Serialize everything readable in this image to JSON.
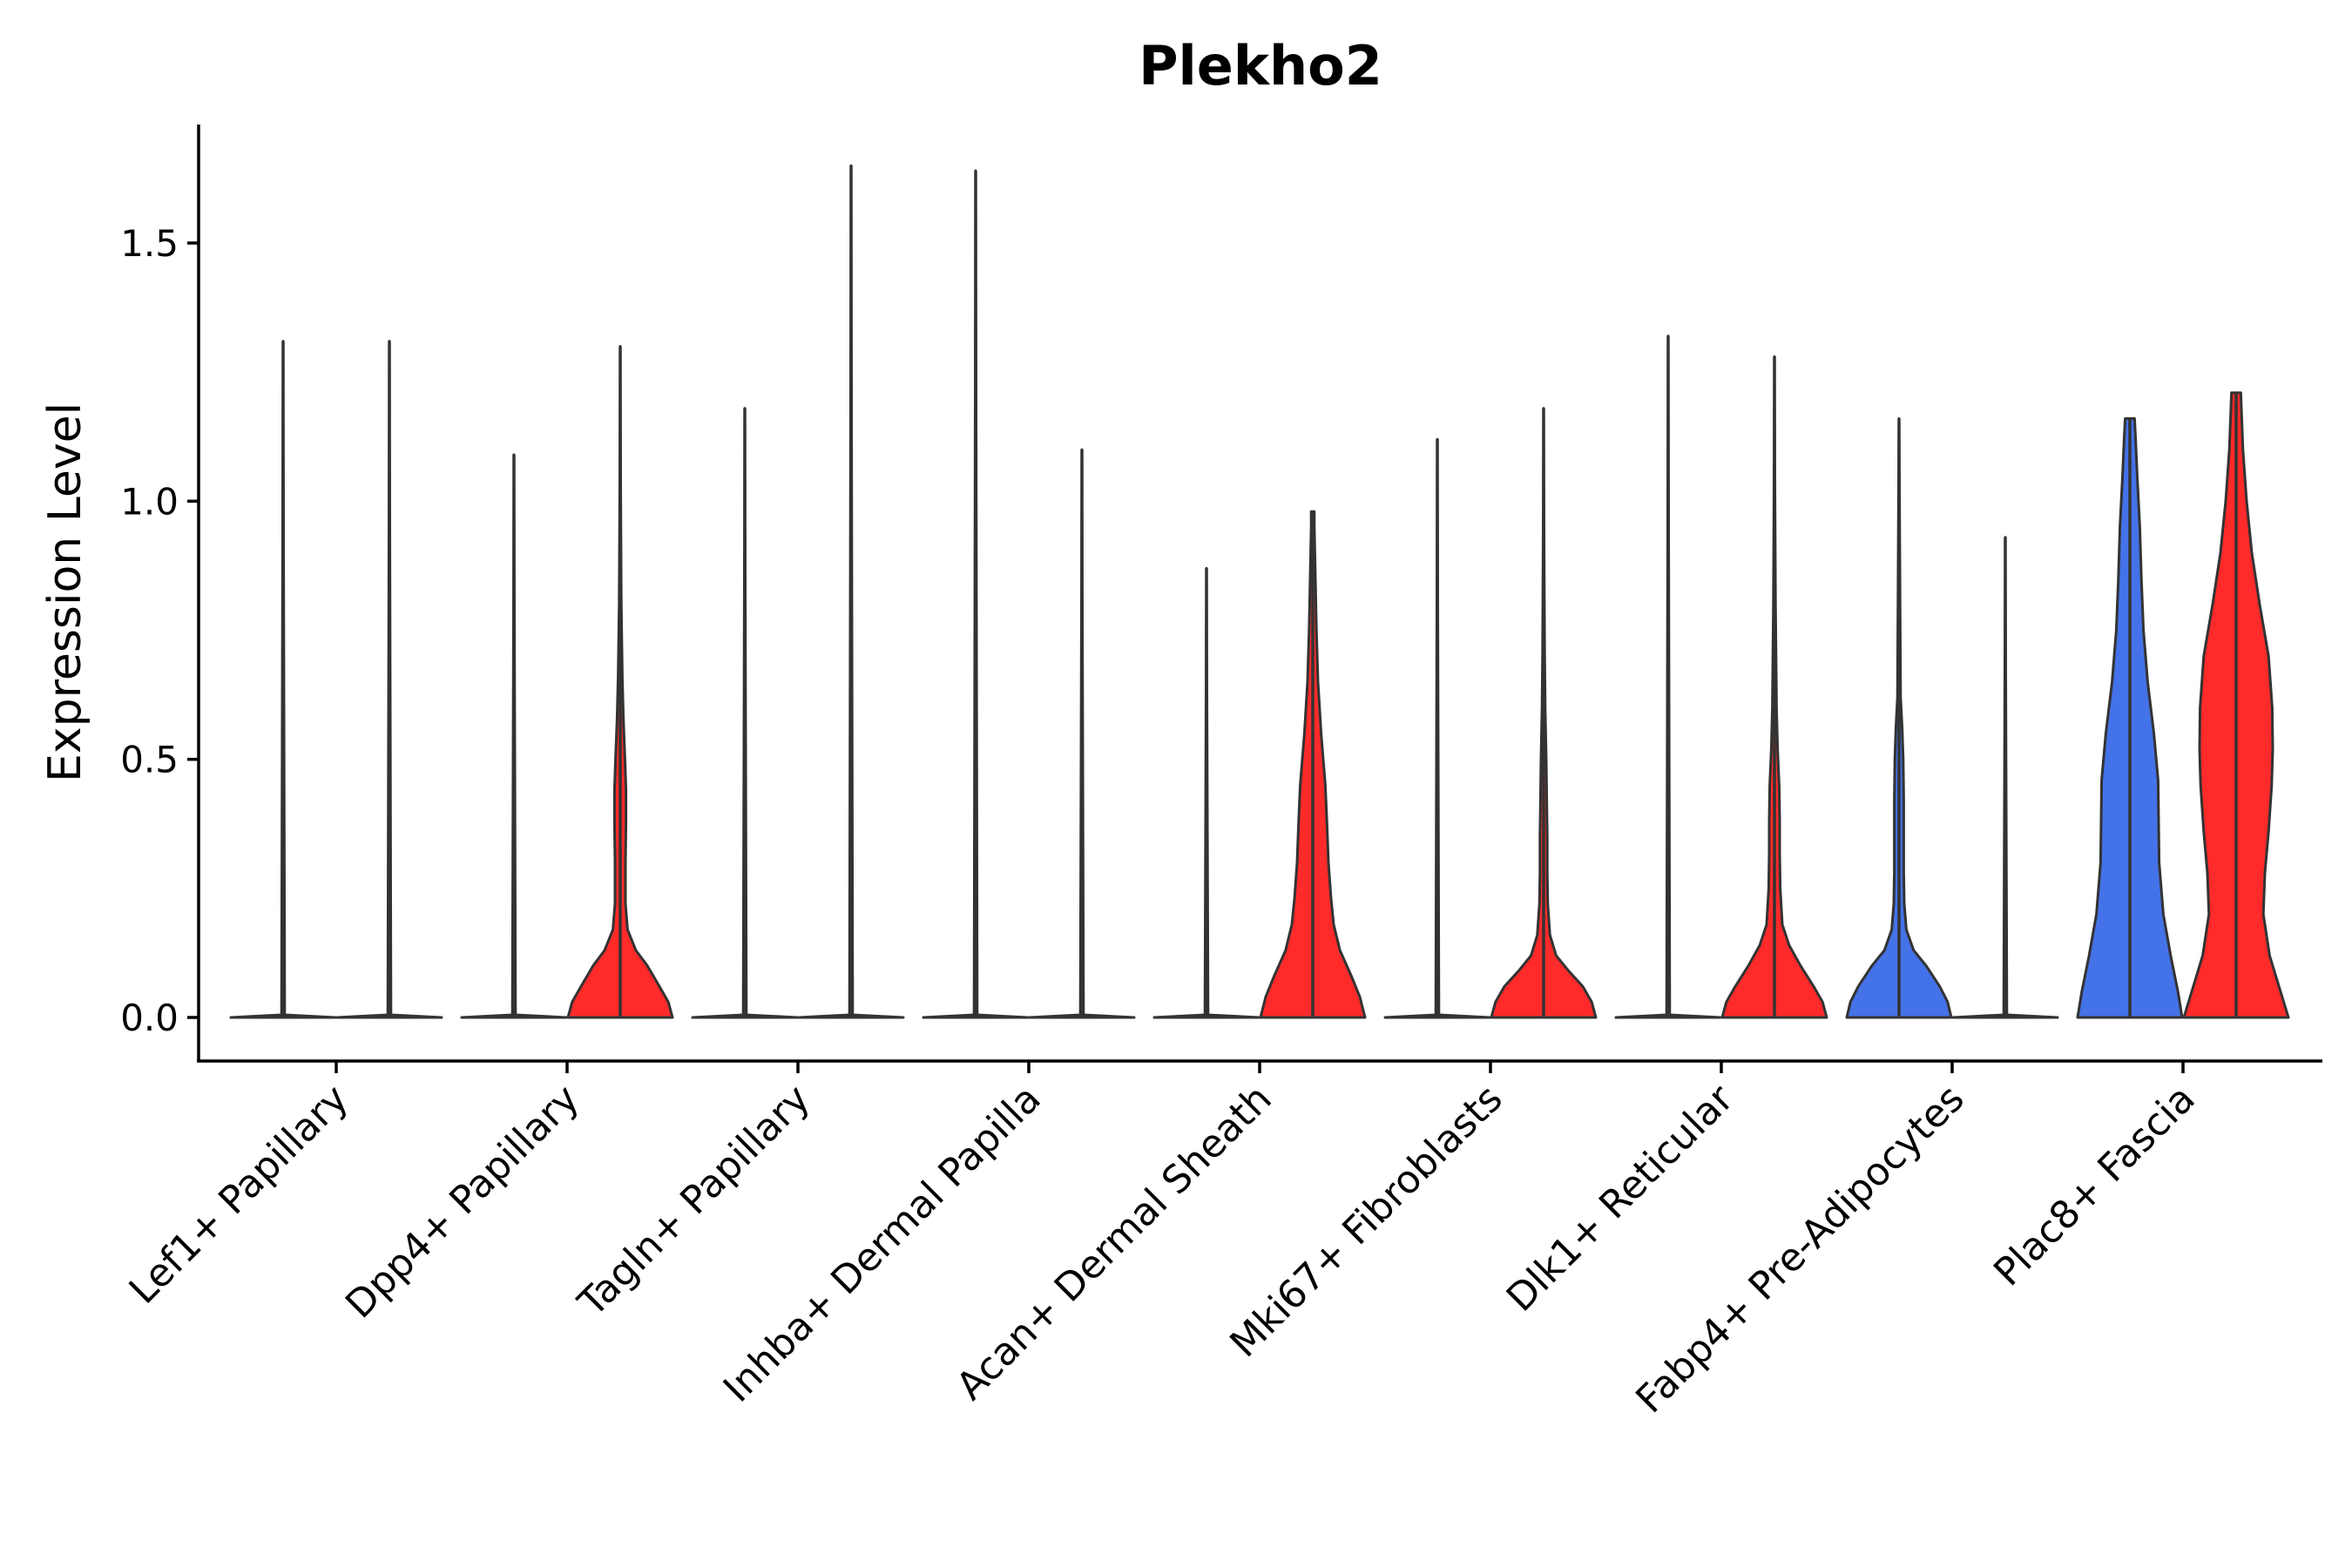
{
  "chart_data": {
    "type": "violin",
    "title": "Plekho2",
    "xlabel": "",
    "ylabel": "Expression Level",
    "ylim": [
      -0.08,
      1.73
    ],
    "yticks": [
      0.0,
      0.5,
      1.0,
      1.5
    ],
    "ytick_labels": [
      "0.0",
      "0.5",
      "1.0",
      "1.5"
    ],
    "grid": false,
    "legend": "none",
    "colors": {
      "high": "#ff2a2a",
      "low": "#4472e8",
      "none": "#ffffff",
      "outline": "#333333"
    },
    "categories": [
      "Lef1+ Papillary",
      "Dpp4+ Papillary",
      "Tagln+ Papillary",
      "Inhba+ Dermal Papilla",
      "Acan+ Dermal Sheath",
      "Mki67+ Fibroblasts",
      "Dlk1+ Reticular",
      "Fabp4+ Pre-Adipocytes",
      "Plac8+ Fascia"
    ],
    "series": [
      {
        "name": "left",
        "violins": [
          {
            "category": "Lef1+ Papillary",
            "fill": "none",
            "max": 1.31,
            "profile": [
              [
                0.0,
                1.0
              ],
              [
                0.005,
                0.03
              ],
              [
                1.31,
                0.0
              ]
            ]
          },
          {
            "category": "Dpp4+ Papillary",
            "fill": "none",
            "max": 1.09,
            "profile": [
              [
                0.0,
                1.0
              ],
              [
                0.005,
                0.03
              ],
              [
                1.09,
                0.0
              ]
            ]
          },
          {
            "category": "Tagln+ Papillary",
            "fill": "none",
            "max": 1.18,
            "profile": [
              [
                0.0,
                1.0
              ],
              [
                0.005,
                0.03
              ],
              [
                1.18,
                0.0
              ]
            ]
          },
          {
            "category": "Inhba+ Dermal Papilla",
            "fill": "none",
            "max": 1.64,
            "profile": [
              [
                0.0,
                1.0
              ],
              [
                0.005,
                0.03
              ],
              [
                1.64,
                0.0
              ]
            ]
          },
          {
            "category": "Acan+ Dermal Sheath",
            "fill": "none",
            "max": 0.87,
            "profile": [
              [
                0.0,
                1.0
              ],
              [
                0.005,
                0.03
              ],
              [
                0.87,
                0.0
              ]
            ]
          },
          {
            "category": "Mki67+ Fibroblasts",
            "fill": "none",
            "max": 1.12,
            "profile": [
              [
                0.0,
                1.0
              ],
              [
                0.005,
                0.03
              ],
              [
                1.12,
                0.0
              ]
            ]
          },
          {
            "category": "Dlk1+ Reticular",
            "fill": "none",
            "max": 1.32,
            "profile": [
              [
                0.0,
                1.0
              ],
              [
                0.005,
                0.03
              ],
              [
                1.32,
                0.0
              ]
            ]
          },
          {
            "category": "Fabp4+ Pre-Adipocytes",
            "fill": "low",
            "max": 1.16,
            "profile": [
              [
                0.0,
                1.0
              ],
              [
                0.03,
                0.93
              ],
              [
                0.06,
                0.78
              ],
              [
                0.1,
                0.52
              ],
              [
                0.13,
                0.28
              ],
              [
                0.17,
                0.14
              ],
              [
                0.22,
                0.1
              ],
              [
                0.28,
                0.09
              ],
              [
                0.35,
                0.09
              ],
              [
                0.42,
                0.09
              ],
              [
                0.5,
                0.08
              ],
              [
                0.56,
                0.06
              ],
              [
                0.62,
                0.03
              ],
              [
                0.8,
                0.02
              ],
              [
                1.0,
                0.01
              ],
              [
                1.16,
                0.0
              ]
            ]
          },
          {
            "category": "Plac8+ Fascia",
            "fill": "low",
            "max": 1.16,
            "profile": [
              [
                0.0,
                1.0
              ],
              [
                0.05,
                0.92
              ],
              [
                0.12,
                0.78
              ],
              [
                0.2,
                0.64
              ],
              [
                0.3,
                0.56
              ],
              [
                0.38,
                0.55
              ],
              [
                0.46,
                0.54
              ],
              [
                0.55,
                0.46
              ],
              [
                0.65,
                0.34
              ],
              [
                0.75,
                0.26
              ],
              [
                0.85,
                0.22
              ],
              [
                0.95,
                0.19
              ],
              [
                1.05,
                0.14
              ],
              [
                1.12,
                0.11
              ],
              [
                1.16,
                0.09
              ]
            ]
          }
        ]
      },
      {
        "name": "right",
        "violins": [
          {
            "category": "Lef1+ Papillary",
            "fill": "none",
            "max": 1.31,
            "profile": [
              [
                0.0,
                1.0
              ],
              [
                0.005,
                0.03
              ],
              [
                1.31,
                0.0
              ]
            ]
          },
          {
            "category": "Dpp4+ Papillary",
            "fill": "high",
            "max": 1.3,
            "profile": [
              [
                0.0,
                1.0
              ],
              [
                0.03,
                0.92
              ],
              [
                0.06,
                0.75
              ],
              [
                0.1,
                0.52
              ],
              [
                0.13,
                0.3
              ],
              [
                0.17,
                0.14
              ],
              [
                0.22,
                0.1
              ],
              [
                0.3,
                0.1
              ],
              [
                0.38,
                0.11
              ],
              [
                0.44,
                0.11
              ],
              [
                0.5,
                0.09
              ],
              [
                0.58,
                0.06
              ],
              [
                0.66,
                0.04
              ],
              [
                0.8,
                0.02
              ],
              [
                1.0,
                0.01
              ],
              [
                1.3,
                0.0
              ]
            ]
          },
          {
            "category": "Tagln+ Papillary",
            "fill": "none",
            "max": 1.65,
            "profile": [
              [
                0.0,
                1.0
              ],
              [
                0.005,
                0.03
              ],
              [
                1.65,
                0.0
              ]
            ]
          },
          {
            "category": "Inhba+ Dermal Papilla",
            "fill": "none",
            "max": 1.1,
            "profile": [
              [
                0.0,
                1.0
              ],
              [
                0.005,
                0.03
              ],
              [
                1.1,
                0.0
              ]
            ]
          },
          {
            "category": "Acan+ Dermal Sheath",
            "fill": "high",
            "max": 0.98,
            "profile": [
              [
                0.0,
                1.0
              ],
              [
                0.04,
                0.9
              ],
              [
                0.08,
                0.74
              ],
              [
                0.13,
                0.52
              ],
              [
                0.18,
                0.4
              ],
              [
                0.23,
                0.35
              ],
              [
                0.3,
                0.3
              ],
              [
                0.38,
                0.27
              ],
              [
                0.45,
                0.24
              ],
              [
                0.55,
                0.16
              ],
              [
                0.65,
                0.1
              ],
              [
                0.75,
                0.07
              ],
              [
                0.85,
                0.05
              ],
              [
                0.95,
                0.03
              ],
              [
                0.98,
                0.03
              ]
            ]
          },
          {
            "category": "Mki67+ Fibroblasts",
            "fill": "high",
            "max": 1.18,
            "profile": [
              [
                0.0,
                1.0
              ],
              [
                0.03,
                0.92
              ],
              [
                0.06,
                0.75
              ],
              [
                0.09,
                0.48
              ],
              [
                0.12,
                0.24
              ],
              [
                0.16,
                0.12
              ],
              [
                0.22,
                0.08
              ],
              [
                0.28,
                0.07
              ],
              [
                0.35,
                0.07
              ],
              [
                0.42,
                0.06
              ],
              [
                0.5,
                0.05
              ],
              [
                0.6,
                0.03
              ],
              [
                0.7,
                0.02
              ],
              [
                0.9,
                0.01
              ],
              [
                1.18,
                0.0
              ]
            ]
          },
          {
            "category": "Dlk1+ Reticular",
            "fill": "high",
            "max": 1.28,
            "profile": [
              [
                0.0,
                1.0
              ],
              [
                0.03,
                0.92
              ],
              [
                0.06,
                0.75
              ],
              [
                0.1,
                0.5
              ],
              [
                0.14,
                0.28
              ],
              [
                0.18,
                0.15
              ],
              [
                0.25,
                0.11
              ],
              [
                0.32,
                0.1
              ],
              [
                0.38,
                0.1
              ],
              [
                0.45,
                0.09
              ],
              [
                0.52,
                0.06
              ],
              [
                0.6,
                0.04
              ],
              [
                0.8,
                0.02
              ],
              [
                1.0,
                0.01
              ],
              [
                1.28,
                0.0
              ]
            ]
          },
          {
            "category": "Fabp4+ Pre-Adipocytes",
            "fill": "none",
            "max": 0.93,
            "profile": [
              [
                0.0,
                1.0
              ],
              [
                0.005,
                0.03
              ],
              [
                0.93,
                0.0
              ]
            ]
          },
          {
            "category": "Plac8+ Fascia",
            "fill": "high",
            "max": 1.21,
            "profile": [
              [
                0.0,
                1.0
              ],
              [
                0.05,
                0.85
              ],
              [
                0.12,
                0.64
              ],
              [
                0.2,
                0.52
              ],
              [
                0.28,
                0.55
              ],
              [
                0.36,
                0.62
              ],
              [
                0.45,
                0.68
              ],
              [
                0.52,
                0.7
              ],
              [
                0.6,
                0.69
              ],
              [
                0.7,
                0.62
              ],
              [
                0.8,
                0.45
              ],
              [
                0.9,
                0.3
              ],
              [
                1.0,
                0.2
              ],
              [
                1.1,
                0.13
              ],
              [
                1.18,
                0.1
              ],
              [
                1.21,
                0.09
              ]
            ]
          }
        ]
      }
    ]
  }
}
